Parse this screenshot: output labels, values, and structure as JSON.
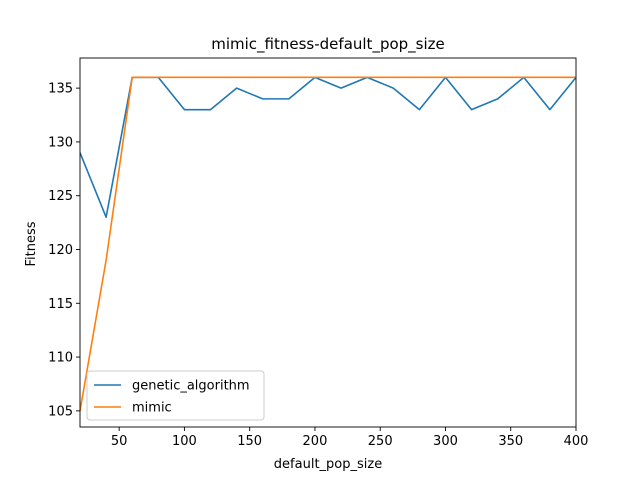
{
  "chart_data": {
    "type": "line",
    "title": "mimic_fitness-default_pop_size",
    "xlabel": "default_pop_size",
    "ylabel": "Fitness",
    "xlim": [
      20,
      400
    ],
    "ylim": [
      103.5,
      137.8
    ],
    "xticks": [
      50,
      100,
      150,
      200,
      250,
      300,
      350,
      400
    ],
    "yticks": [
      105,
      110,
      115,
      120,
      125,
      130,
      135
    ],
    "grid": false,
    "legend_position": "lower-left",
    "x": [
      20,
      40,
      60,
      80,
      100,
      120,
      140,
      160,
      180,
      200,
      220,
      240,
      260,
      280,
      300,
      320,
      340,
      360,
      380,
      400
    ],
    "series": [
      {
        "name": "genetic_algorithm",
        "color": "#1f77b4",
        "values": [
          129,
          123,
          136,
          136,
          133,
          133,
          135,
          134,
          134,
          136,
          135,
          136,
          135,
          133,
          136,
          133,
          134,
          136,
          133,
          136
        ]
      },
      {
        "name": "mimic",
        "color": "#ff7f0e",
        "values": [
          105,
          119,
          136,
          136,
          136,
          136,
          136,
          136,
          136,
          136,
          136,
          136,
          136,
          136,
          136,
          136,
          136,
          136,
          136,
          136
        ]
      }
    ]
  }
}
